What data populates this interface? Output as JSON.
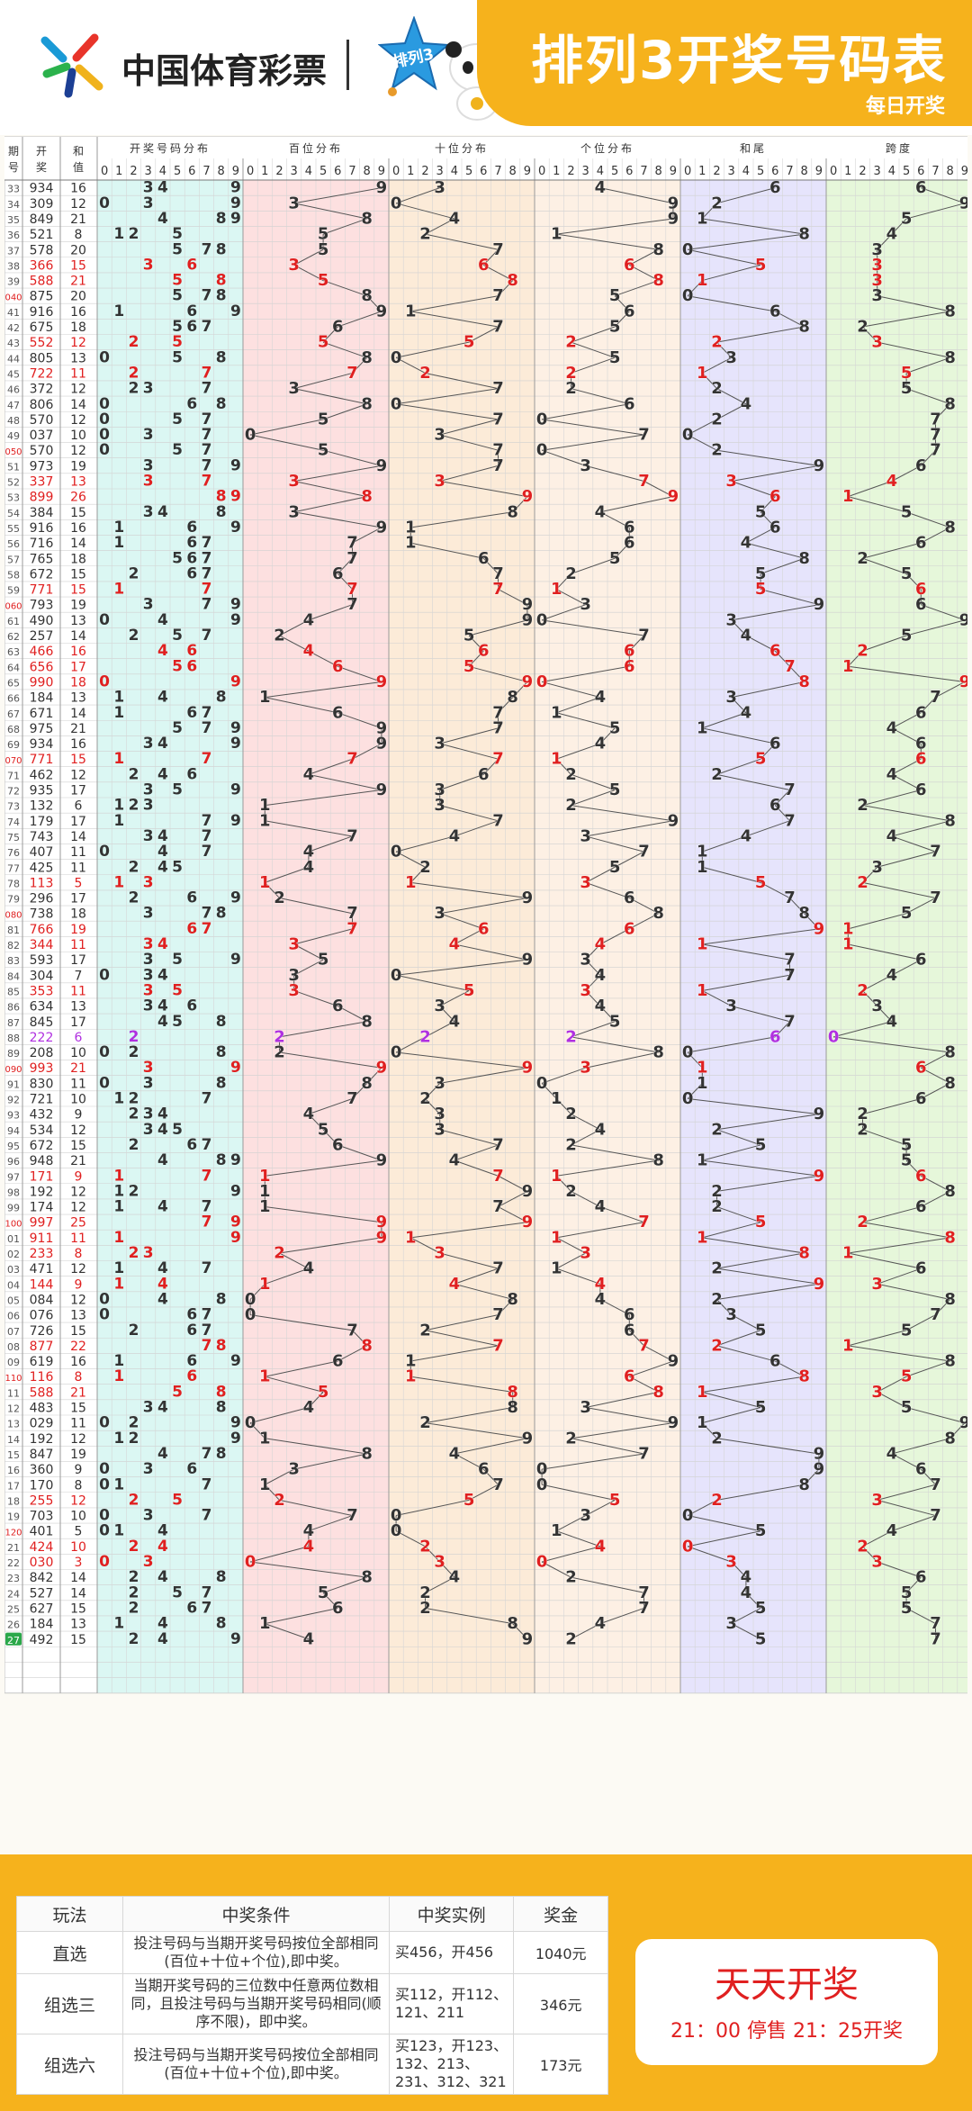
{
  "header": {
    "brand": "中国体育彩票",
    "star_text": "排列3",
    "title": "排列3开奖号码表",
    "subtitle": "每日开奖"
  },
  "table": {
    "head_issue": [
      "期",
      "号"
    ],
    "head_number": [
      "开",
      "奖"
    ],
    "head_sum": [
      "和",
      "值"
    ],
    "sections": [
      "开奖号码分布",
      "百位分布",
      "十位分布",
      "个位分布",
      "和尾",
      "跨度"
    ]
  },
  "chart_data": {
    "type": "table",
    "title": "排列3开奖号码表",
    "columns": [
      "期号",
      "开奖",
      "和值",
      "开奖号码分布",
      "百位分布",
      "十位分布",
      "个位分布",
      "和尾",
      "跨度"
    ],
    "rows": [
      [
        "33",
        "934",
        "16"
      ],
      [
        "34",
        "309",
        "12"
      ],
      [
        "35",
        "849",
        "21"
      ],
      [
        "36",
        "521",
        "8"
      ],
      [
        "37",
        "578",
        "20"
      ],
      [
        "38",
        "366",
        "15"
      ],
      [
        "39",
        "588",
        "21"
      ],
      [
        "040",
        "875",
        "20"
      ],
      [
        "41",
        "916",
        "16"
      ],
      [
        "42",
        "675",
        "18"
      ],
      [
        "43",
        "552",
        "12"
      ],
      [
        "44",
        "805",
        "13"
      ],
      [
        "45",
        "722",
        "11"
      ],
      [
        "46",
        "372",
        "12"
      ],
      [
        "47",
        "806",
        "14"
      ],
      [
        "48",
        "570",
        "12"
      ],
      [
        "49",
        "037",
        "10"
      ],
      [
        "050",
        "570",
        "12"
      ],
      [
        "51",
        "973",
        "19"
      ],
      [
        "52",
        "337",
        "13"
      ],
      [
        "53",
        "899",
        "26"
      ],
      [
        "54",
        "384",
        "15"
      ],
      [
        "55",
        "916",
        "16"
      ],
      [
        "56",
        "716",
        "14"
      ],
      [
        "57",
        "765",
        "18"
      ],
      [
        "58",
        "672",
        "15"
      ],
      [
        "59",
        "771",
        "15"
      ],
      [
        "060",
        "793",
        "19"
      ],
      [
        "61",
        "490",
        "13"
      ],
      [
        "62",
        "257",
        "14"
      ],
      [
        "63",
        "466",
        "16"
      ],
      [
        "64",
        "656",
        "17"
      ],
      [
        "65",
        "990",
        "18"
      ],
      [
        "66",
        "184",
        "13"
      ],
      [
        "67",
        "671",
        "14"
      ],
      [
        "68",
        "975",
        "21"
      ],
      [
        "69",
        "934",
        "16"
      ],
      [
        "070",
        "771",
        "15"
      ],
      [
        "71",
        "462",
        "12"
      ],
      [
        "72",
        "935",
        "17"
      ],
      [
        "73",
        "132",
        "6"
      ],
      [
        "74",
        "179",
        "17"
      ],
      [
        "75",
        "743",
        "14"
      ],
      [
        "76",
        "407",
        "11"
      ],
      [
        "77",
        "425",
        "11"
      ],
      [
        "78",
        "113",
        "5"
      ],
      [
        "79",
        "296",
        "17"
      ],
      [
        "080",
        "738",
        "18"
      ],
      [
        "81",
        "766",
        "19"
      ],
      [
        "82",
        "344",
        "11"
      ],
      [
        "83",
        "593",
        "17"
      ],
      [
        "84",
        "304",
        "7"
      ],
      [
        "85",
        "353",
        "11"
      ],
      [
        "86",
        "634",
        "13"
      ],
      [
        "87",
        "845",
        "17"
      ],
      [
        "88",
        "222",
        "6"
      ],
      [
        "89",
        "208",
        "10"
      ],
      [
        "090",
        "993",
        "21"
      ],
      [
        "91",
        "830",
        "11"
      ],
      [
        "92",
        "721",
        "10"
      ],
      [
        "93",
        "432",
        "9"
      ],
      [
        "94",
        "534",
        "12"
      ],
      [
        "95",
        "672",
        "15"
      ],
      [
        "96",
        "948",
        "21"
      ],
      [
        "97",
        "171",
        "9"
      ],
      [
        "98",
        "192",
        "12"
      ],
      [
        "99",
        "174",
        "12"
      ],
      [
        "100",
        "997",
        "25"
      ],
      [
        "01",
        "911",
        "11"
      ],
      [
        "02",
        "233",
        "8"
      ],
      [
        "03",
        "471",
        "12"
      ],
      [
        "04",
        "144",
        "9"
      ],
      [
        "05",
        "084",
        "12"
      ],
      [
        "06",
        "076",
        "13"
      ],
      [
        "07",
        "726",
        "15"
      ],
      [
        "08",
        "877",
        "22"
      ],
      [
        "09",
        "619",
        "16"
      ],
      [
        "110",
        "116",
        "8"
      ],
      [
        "11",
        "588",
        "21"
      ],
      [
        "12",
        "483",
        "15"
      ],
      [
        "13",
        "029",
        "11"
      ],
      [
        "14",
        "192",
        "12"
      ],
      [
        "15",
        "847",
        "19"
      ],
      [
        "16",
        "360",
        "9"
      ],
      [
        "17",
        "170",
        "8"
      ],
      [
        "18",
        "255",
        "12"
      ],
      [
        "19",
        "703",
        "10"
      ],
      [
        "120",
        "401",
        "5"
      ],
      [
        "21",
        "424",
        "10"
      ],
      [
        "22",
        "030",
        "3"
      ],
      [
        "23",
        "842",
        "14"
      ],
      [
        "24",
        "527",
        "14"
      ],
      [
        "25",
        "627",
        "15"
      ],
      [
        "26",
        "184",
        "13"
      ],
      [
        "27",
        "492",
        "15"
      ]
    ]
  },
  "rules": {
    "headers": [
      "玩法",
      "中奖条件",
      "中奖实例",
      "奖金"
    ],
    "rows": [
      {
        "name": "直选",
        "cond": "投注号码与当期开奖号码按位全部相同(百位+十位+个位),即中奖。",
        "example": "买456，开456",
        "prize": "1040元"
      },
      {
        "name": "组选三",
        "cond": "当期开奖号码的三位数中任意两位数相同，且投注号码与当期开奖号码相同(顺序不限)，即中奖。",
        "example": "买112，开112、121、211",
        "prize": "346元"
      },
      {
        "name": "组选六",
        "cond": "投注号码与当期开奖号码按位全部相同(百位+十位+个位),即中奖。",
        "example": "买123，开123、132、213、231、312、321",
        "prize": "173元"
      }
    ]
  },
  "daily": {
    "title": "天天开奖",
    "time": "21：00 停售 21：25开奖"
  }
}
